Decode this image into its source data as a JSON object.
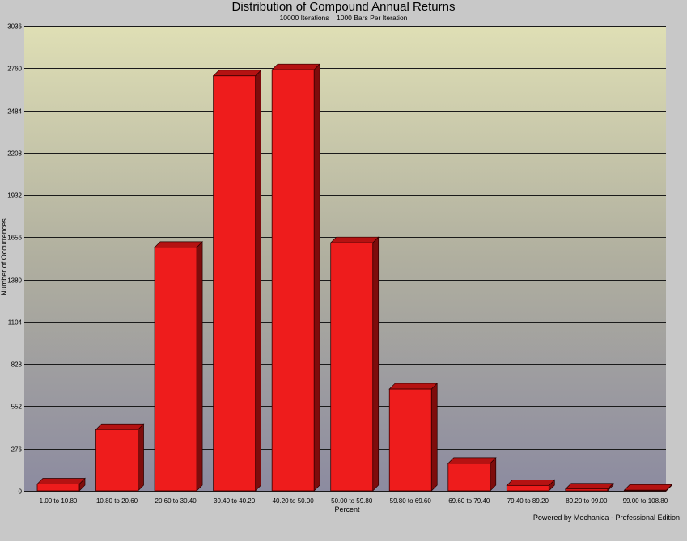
{
  "chart_data": {
    "type": "bar",
    "title": "Distribution of Compound Annual Returns",
    "subtitle": "10000 Iterations    1000 Bars Per Iteration",
    "xlabel": "Percent",
    "ylabel": "Number of Occurrences",
    "categories": [
      "1.00 to 10.80",
      "10.80 to 20.60",
      "20.60 to 30.40",
      "30.40 to 40.20",
      "40.20 to 50.00",
      "50.00 to 59.80",
      "59.80 to 69.60",
      "69.60 to 79.40",
      "79.40 to 89.20",
      "89.20 to 99.00",
      "99.00 to 108.80"
    ],
    "values": [
      45,
      400,
      1590,
      2710,
      2750,
      1620,
      665,
      180,
      35,
      12,
      4
    ],
    "yticks": [
      0,
      276,
      552,
      828,
      1104,
      1380,
      1656,
      1932,
      2208,
      2484,
      2760,
      3036
    ],
    "ylim": [
      0,
      3036
    ],
    "grid": true,
    "bar_color": "#ee1c1c",
    "footer": "Powered by Mechanica - Professional Edition"
  }
}
